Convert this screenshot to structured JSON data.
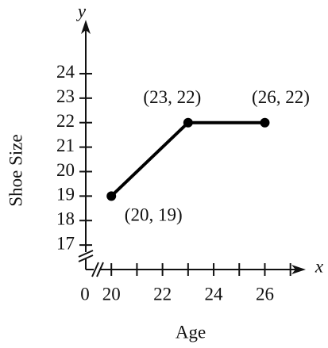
{
  "chart_data": {
    "type": "line",
    "x_label": "Age",
    "y_label": "Shoe Size",
    "x_axis_letter": "x",
    "y_axis_letter": "y",
    "origin_label": "0",
    "x": [
      20,
      23,
      26
    ],
    "series": [
      {
        "color": "#000000",
        "values": [
          19,
          22,
          22
        ]
      }
    ],
    "point_labels": [
      "(20, 19)",
      "(23, 22)",
      "(26, 22)"
    ],
    "xlim": [
      19,
      27.6
    ],
    "xticks": [
      20,
      22,
      24,
      26
    ],
    "xminor_ticks": [
      21,
      23,
      25,
      27
    ],
    "ylim": [
      16,
      26.2
    ],
    "yticks": [
      17,
      18,
      19,
      20,
      21,
      22,
      23,
      24
    ],
    "axis_break": true
  }
}
